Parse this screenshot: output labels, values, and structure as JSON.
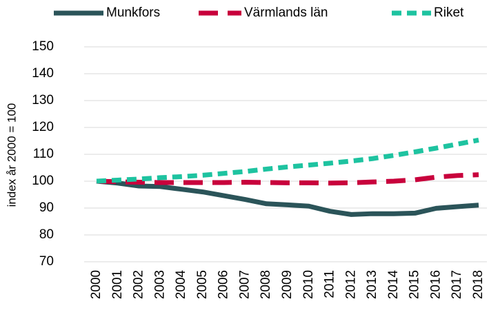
{
  "chart_data": {
    "type": "line",
    "y_label": "index år 2000 = 100",
    "categories": [
      "2000",
      "2001",
      "2002",
      "2003",
      "2004",
      "2005",
      "2006",
      "2007",
      "2008",
      "2009",
      "2010",
      "2011",
      "2012",
      "2013",
      "2014",
      "2015",
      "2016",
      "2017",
      "2018"
    ],
    "series": [
      {
        "name": "Munkfors",
        "color": "#2b5459",
        "dash": "solid",
        "values": [
          100,
          99.3,
          98.2,
          98,
          97,
          96,
          94.6,
          93.2,
          91.6,
          91.2,
          90.7,
          88.8,
          87.6,
          87.9,
          87.9,
          88.1,
          89.9,
          90.5,
          91.1
        ]
      },
      {
        "name": "Värmlands län",
        "color": "#c8003c",
        "dash": "long",
        "values": [
          100,
          99.8,
          99.6,
          99.5,
          99.5,
          99.5,
          99.5,
          99.6,
          99.5,
          99.4,
          99.4,
          99.3,
          99.4,
          99.7,
          100,
          100.5,
          101.5,
          102.1,
          102.4
        ]
      },
      {
        "name": "Riket",
        "color": "#1ec3a0",
        "dash": "short",
        "values": [
          100,
          100.4,
          100.8,
          101.3,
          101.7,
          102.2,
          102.9,
          103.6,
          104.5,
          105.3,
          106,
          106.7,
          107.5,
          108.4,
          109.6,
          110.9,
          112.3,
          113.8,
          115.3
        ]
      }
    ],
    "ylim": [
      70,
      150
    ],
    "yticks": [
      70,
      80,
      90,
      100,
      110,
      120,
      130,
      140,
      150
    ],
    "grid": true,
    "legend": "top"
  }
}
